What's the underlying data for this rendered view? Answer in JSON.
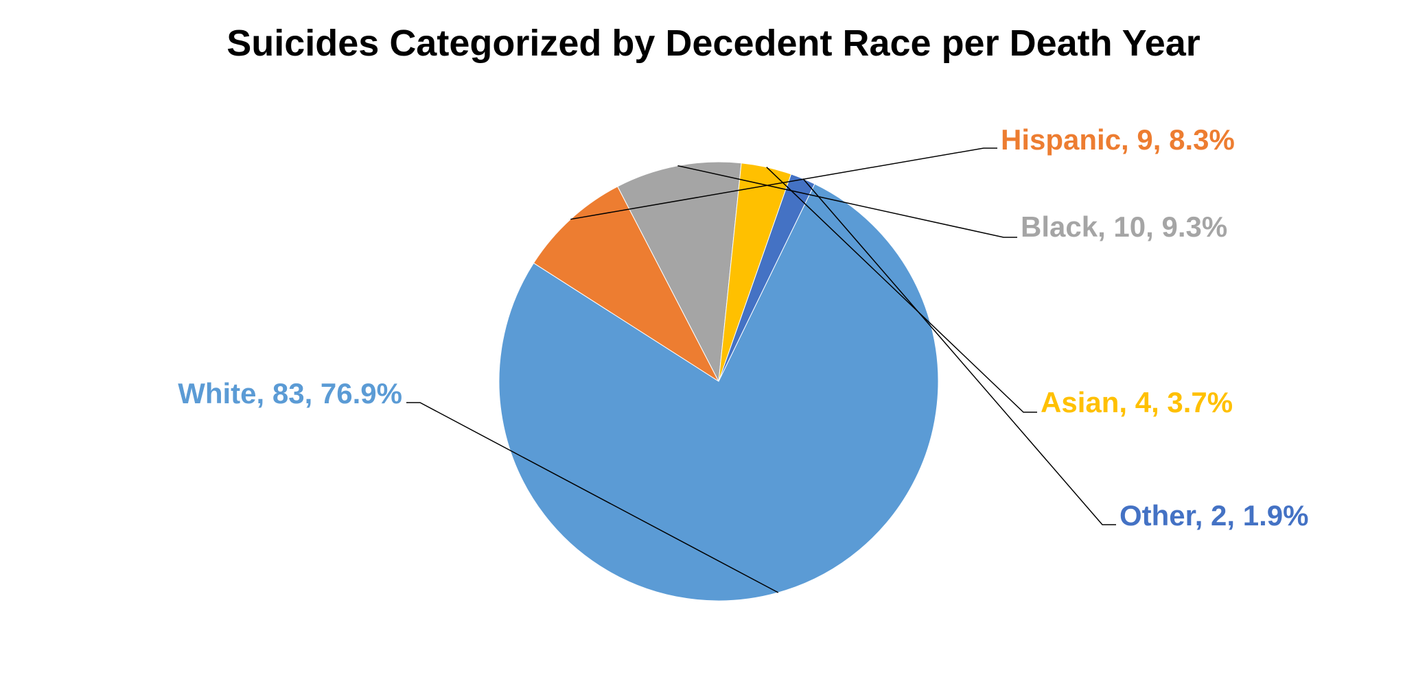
{
  "chart_data": {
    "type": "pie",
    "title": "Suicides Categorized by Decedent Race per Death Year",
    "slices": [
      {
        "name": "Hispanic",
        "value": 9,
        "percent": "8.3%",
        "label": "Hispanic, 9, 8.3%",
        "color": "#ED7D31"
      },
      {
        "name": "Black",
        "value": 10,
        "percent": "9.3%",
        "label": "Black, 10, 9.3%",
        "color": "#A5A5A5"
      },
      {
        "name": "Asian",
        "value": 4,
        "percent": "3.7%",
        "label": "Asian, 4, 3.7%",
        "color": "#FFC000"
      },
      {
        "name": "Other",
        "value": 2,
        "percent": "1.9%",
        "label": "Other, 2, 1.9%",
        "color": "#4472C4"
      },
      {
        "name": "White",
        "value": 83,
        "percent": "76.9%",
        "label": "White, 83, 76.9%",
        "color": "#5B9BD5"
      }
    ],
    "legend": "none"
  }
}
